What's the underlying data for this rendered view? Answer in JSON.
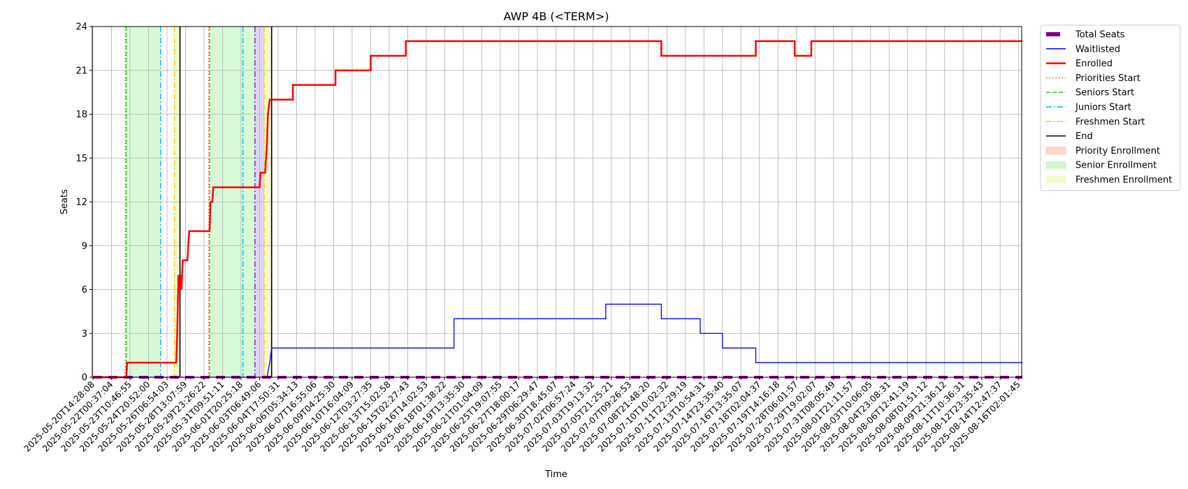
{
  "chart_data": {
    "type": "line",
    "title": "AWP 4B (<TERM>)",
    "xlabel": "Time",
    "ylabel": "Seats",
    "ylim": [
      0,
      24
    ],
    "yticks": [
      0,
      3,
      6,
      9,
      12,
      15,
      18,
      21,
      24
    ],
    "grid": true,
    "legend_position": "outside-right",
    "x_tick_labels": [
      "2025-05-20T14:28:08",
      "2025-05-22T00:37:04",
      "2025-05-23T10:46:55",
      "2025-05-24T20:52:00",
      "2025-05-26T06:54:03",
      "2025-05-28T13:07:59",
      "2025-05-29T23:26:22",
      "2025-05-31T09:51:11",
      "2025-06-01T20:25:18",
      "2025-06-03T06:49:06",
      "2025-06-04T17:50:31",
      "2025-06-06T05:34:13",
      "2025-06-07T16:55:06",
      "2025-06-09T04:25:30",
      "2025-06-10T16:04:09",
      "2025-06-12T03:27:35",
      "2025-06-13T15:02:58",
      "2025-06-15T02:27:43",
      "2025-06-16T14:02:53",
      "2025-06-18T01:38:22",
      "2025-06-19T13:35:30",
      "2025-06-21T01:04:09",
      "2025-06-25T19:07:55",
      "2025-06-27T18:00:17",
      "2025-06-29T06:29:47",
      "2025-06-30T18:45:07",
      "2025-07-02T06:57:24",
      "2025-07-03T19:13:32",
      "2025-07-05T21:25:21",
      "2025-07-07T09:26:53",
      "2025-07-08T21:48:20",
      "2025-07-10T10:02:32",
      "2025-07-11T22:29:19",
      "2025-07-13T10:54:31",
      "2025-07-14T23:35:40",
      "2025-07-16T13:35:07",
      "2025-07-18T02:04:37",
      "2025-07-19T14:16:18",
      "2025-07-28T06:01:57",
      "2025-07-29T19:02:07",
      "2025-07-31T08:05:49",
      "2025-08-01T21:11:57",
      "2025-08-03T10:06:05",
      "2025-08-04T23:08:31",
      "2025-08-06T12:41:19",
      "2025-08-08T01:51:12",
      "2025-08-09T21:36:12",
      "2025-08-11T10:36:31",
      "2025-08-12T23:35:43",
      "2025-08-14T12:47:37",
      "2025-08-16T02:01:45"
    ],
    "series": [
      {
        "name": "Total Seats",
        "color": "#800080",
        "style": "dashed-thick",
        "points": [
          [
            0,
            0
          ],
          [
            50.2,
            0
          ]
        ]
      },
      {
        "name": "Waitlisted",
        "color": "#0000ff",
        "style": "solid-thin",
        "points": [
          [
            0,
            0
          ],
          [
            9.4,
            0
          ],
          [
            9.55,
            1
          ],
          [
            9.65,
            2
          ],
          [
            19.5,
            2
          ],
          [
            19.5,
            4
          ],
          [
            27.7,
            4
          ],
          [
            27.7,
            5
          ],
          [
            30.7,
            5
          ],
          [
            30.7,
            4
          ],
          [
            32.8,
            4
          ],
          [
            32.8,
            3
          ],
          [
            34.0,
            3
          ],
          [
            34.0,
            2
          ],
          [
            35.8,
            2
          ],
          [
            35.8,
            1
          ],
          [
            50.2,
            1
          ]
        ]
      },
      {
        "name": "Enrolled",
        "color": "#ff0000",
        "style": "solid-thick",
        "points": [
          [
            0,
            0
          ],
          [
            1.8,
            0
          ],
          [
            1.85,
            1
          ],
          [
            4.5,
            1
          ],
          [
            4.55,
            3
          ],
          [
            4.62,
            7
          ],
          [
            4.68,
            6
          ],
          [
            4.72,
            7
          ],
          [
            4.78,
            6
          ],
          [
            4.85,
            8
          ],
          [
            5.1,
            8
          ],
          [
            5.2,
            10
          ],
          [
            6.3,
            10
          ],
          [
            6.35,
            12
          ],
          [
            6.45,
            12
          ],
          [
            6.5,
            13
          ],
          [
            9.0,
            13
          ],
          [
            9.05,
            14
          ],
          [
            9.3,
            14
          ],
          [
            9.35,
            15
          ],
          [
            9.4,
            16
          ],
          [
            9.45,
            18
          ],
          [
            9.55,
            19
          ],
          [
            10.8,
            19
          ],
          [
            10.8,
            20
          ],
          [
            13.1,
            20
          ],
          [
            13.1,
            21
          ],
          [
            15.0,
            21
          ],
          [
            15.0,
            22
          ],
          [
            16.9,
            22
          ],
          [
            16.9,
            23
          ],
          [
            30.7,
            23
          ],
          [
            30.7,
            22
          ],
          [
            35.8,
            22
          ],
          [
            35.8,
            23
          ],
          [
            37.9,
            23
          ],
          [
            37.9,
            22
          ],
          [
            38.8,
            22
          ],
          [
            38.8,
            23
          ],
          [
            50.2,
            23
          ]
        ]
      }
    ],
    "vlines": [
      {
        "name": "Priorities Start",
        "color": "#ff4500",
        "style": "dotted",
        "x": [
          1.75,
          6.25
        ]
      },
      {
        "name": "Seniors Start",
        "color": "#32cd32",
        "style": "dashed",
        "x": [
          1.8,
          6.3
        ]
      },
      {
        "name": "Juniors Start",
        "color": "#00bcd4",
        "style": "dashdot",
        "x": [
          3.65,
          8.1
        ]
      },
      {
        "name": "Freshmen Start",
        "color": "#e6d800",
        "style": "dashdot",
        "x": [
          4.4,
          9.25
        ]
      },
      {
        "name": "End",
        "color": "#000000",
        "style": "solid",
        "x": [
          4.7,
          9.65
        ]
      },
      {
        "name": "",
        "color": "#7b1fa2",
        "style": "dashdot",
        "x": [
          8.75
        ]
      }
    ],
    "shaded_regions": [
      {
        "name": "Senior Enrollment",
        "color": "rgba(144,238,144,0.35)",
        "from": 1.8,
        "to": 3.65
      },
      {
        "name": "Freshmen Enrollment",
        "color": "rgba(240,240,160,0.5)",
        "from": 4.4,
        "to": 4.7
      },
      {
        "name": "Senior Enrollment",
        "color": "rgba(144,238,144,0.35)",
        "from": 6.3,
        "to": 8.75
      },
      {
        "name": "",
        "color": "rgba(180,160,240,0.45)",
        "from": 8.75,
        "to": 9.25
      },
      {
        "name": "Freshmen Enrollment",
        "color": "rgba(240,240,160,0.5)",
        "from": 9.25,
        "to": 9.65
      }
    ],
    "legend": [
      {
        "label": "Total Seats",
        "kind": "thickbar",
        "color": "#800080"
      },
      {
        "label": "Waitlisted",
        "kind": "line",
        "color": "#0000ff",
        "dash": ""
      },
      {
        "label": "Enrolled",
        "kind": "line",
        "color": "#ff0000",
        "dash": "",
        "width": 2.5
      },
      {
        "label": "Priorities Start",
        "kind": "line",
        "color": "#ff4500",
        "dash": "1.5,3"
      },
      {
        "label": "Seniors Start",
        "kind": "line",
        "color": "#32cd32",
        "dash": "6,3"
      },
      {
        "label": "Juniors Start",
        "kind": "line",
        "color": "#00bcd4",
        "dash": "8,3,2,3"
      },
      {
        "label": "Freshmen Start",
        "kind": "line",
        "color": "#e6d800",
        "dash": "8,3,2,3"
      },
      {
        "label": "End",
        "kind": "line",
        "color": "#000000",
        "dash": ""
      },
      {
        "label": "Priority Enrollment",
        "kind": "patch",
        "color": "#fbd5c5"
      },
      {
        "label": "Senior Enrollment",
        "kind": "patch",
        "color": "#d4f5cc"
      },
      {
        "label": "Freshmen Enrollment",
        "kind": "patch",
        "color": "#f6f7cc"
      }
    ]
  }
}
